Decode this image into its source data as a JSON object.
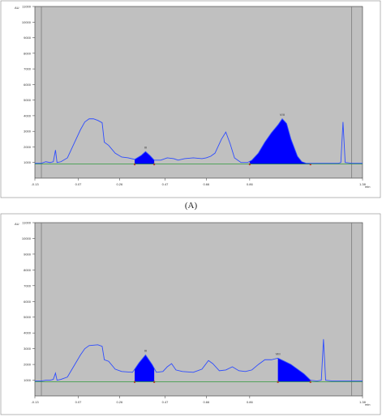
{
  "panel_labels": [
    "(A)"
  ],
  "colors": {
    "plot_bg": "#c0c0c0",
    "trace": "#2d4cff",
    "fill": "#0000ff",
    "baseline": "#2e9a3a",
    "marker": "#d42020",
    "vline": "#7a7a7a",
    "frame": "#333333"
  },
  "chart_data": [
    {
      "type": "area",
      "y_unit": "AU",
      "x_unit": "min",
      "ylim": [
        0,
        11000
      ],
      "xlim": [
        -0.13,
        1.38
      ],
      "y_ticks": [
        1000,
        2000,
        3000,
        4000,
        5000,
        6000,
        7000,
        8000,
        9000,
        10000,
        11000
      ],
      "x_ticks": [
        {
          "v": -0.13,
          "label": "-0.13"
        },
        {
          "v": 0.07,
          "label": "0.07"
        },
        {
          "v": 0.26,
          "label": "0.26"
        },
        {
          "v": 0.47,
          "label": "0.47"
        },
        {
          "v": 0.66,
          "label": "0.66"
        },
        {
          "v": 0.86,
          "label": "0.86"
        },
        {
          "v": 1.38,
          "label": "1.38"
        }
      ],
      "baseline_y": 900,
      "vlines": [
        -0.1,
        1.33
      ],
      "trace": [
        [
          -0.13,
          950
        ],
        [
          -0.1,
          950
        ],
        [
          -0.08,
          1050
        ],
        [
          -0.06,
          1000
        ],
        [
          -0.045,
          1050
        ],
        [
          -0.035,
          1800
        ],
        [
          -0.028,
          1000
        ],
        [
          -0.01,
          1050
        ],
        [
          0.02,
          1300
        ],
        [
          0.05,
          2200
        ],
        [
          0.08,
          3100
        ],
        [
          0.1,
          3600
        ],
        [
          0.12,
          3800
        ],
        [
          0.14,
          3800
        ],
        [
          0.16,
          3700
        ],
        [
          0.18,
          3550
        ],
        [
          0.19,
          2300
        ],
        [
          0.21,
          2100
        ],
        [
          0.24,
          1600
        ],
        [
          0.27,
          1350
        ],
        [
          0.3,
          1300
        ],
        [
          0.33,
          1200
        ],
        [
          0.36,
          1450
        ],
        [
          0.38,
          1700
        ],
        [
          0.4,
          1450
        ],
        [
          0.42,
          1150
        ],
        [
          0.45,
          1150
        ],
        [
          0.48,
          1300
        ],
        [
          0.51,
          1250
        ],
        [
          0.53,
          1150
        ],
        [
          0.56,
          1250
        ],
        [
          0.6,
          1300
        ],
        [
          0.64,
          1250
        ],
        [
          0.66,
          1300
        ],
        [
          0.68,
          1400
        ],
        [
          0.7,
          1600
        ],
        [
          0.73,
          2500
        ],
        [
          0.75,
          2950
        ],
        [
          0.77,
          2200
        ],
        [
          0.79,
          1300
        ],
        [
          0.82,
          1000
        ],
        [
          0.85,
          1000
        ],
        [
          0.87,
          1150
        ],
        [
          0.9,
          1600
        ],
        [
          0.93,
          2300
        ],
        [
          0.96,
          2900
        ],
        [
          0.99,
          3400
        ],
        [
          1.01,
          3800
        ],
        [
          1.03,
          3500
        ],
        [
          1.05,
          2500
        ],
        [
          1.08,
          1400
        ],
        [
          1.1,
          1050
        ],
        [
          1.12,
          950
        ],
        [
          1.15,
          950
        ],
        [
          1.18,
          950
        ],
        [
          1.21,
          950
        ],
        [
          1.24,
          950
        ],
        [
          1.27,
          950
        ],
        [
          1.28,
          1000
        ],
        [
          1.29,
          3600
        ],
        [
          1.3,
          1000
        ],
        [
          1.33,
          950
        ],
        [
          1.38,
          950
        ]
      ],
      "peaks": [
        {
          "label": "III",
          "x0": 0.33,
          "x1": 0.42
        },
        {
          "label": "VIII",
          "x0": 0.86,
          "x1": 1.14
        }
      ]
    },
    {
      "type": "area",
      "y_unit": "AU",
      "x_unit": "min",
      "ylim": [
        0,
        11000
      ],
      "xlim": [
        -0.13,
        1.38
      ],
      "y_ticks": [
        1000,
        2000,
        3000,
        4000,
        5000,
        6000,
        7000,
        8000,
        9000,
        10000,
        11000
      ],
      "x_ticks": [
        {
          "v": -0.13,
          "label": "-0.13"
        },
        {
          "v": 0.07,
          "label": "0.07"
        },
        {
          "v": 0.26,
          "label": "0.26"
        },
        {
          "v": 0.47,
          "label": "0.47"
        },
        {
          "v": 0.66,
          "label": "0.66"
        },
        {
          "v": 0.86,
          "label": "0.86"
        },
        {
          "v": 1.38,
          "label": "1.38"
        }
      ],
      "baseline_y": 900,
      "vlines": [
        -0.1,
        1.33
      ],
      "trace": [
        [
          -0.13,
          950
        ],
        [
          -0.1,
          950
        ],
        [
          -0.08,
          1000
        ],
        [
          -0.06,
          1000
        ],
        [
          -0.045,
          1050
        ],
        [
          -0.035,
          1450
        ],
        [
          -0.028,
          1000
        ],
        [
          -0.01,
          1050
        ],
        [
          0.02,
          1200
        ],
        [
          0.05,
          1900
        ],
        [
          0.08,
          2600
        ],
        [
          0.1,
          3000
        ],
        [
          0.12,
          3200
        ],
        [
          0.16,
          3250
        ],
        [
          0.18,
          3150
        ],
        [
          0.19,
          2300
        ],
        [
          0.21,
          2200
        ],
        [
          0.24,
          1700
        ],
        [
          0.27,
          1550
        ],
        [
          0.32,
          1500
        ],
        [
          0.35,
          2100
        ],
        [
          0.38,
          2600
        ],
        [
          0.41,
          2000
        ],
        [
          0.43,
          1500
        ],
        [
          0.46,
          1550
        ],
        [
          0.48,
          1850
        ],
        [
          0.5,
          2050
        ],
        [
          0.52,
          1650
        ],
        [
          0.55,
          1550
        ],
        [
          0.6,
          1500
        ],
        [
          0.64,
          1700
        ],
        [
          0.67,
          2250
        ],
        [
          0.69,
          2050
        ],
        [
          0.72,
          1600
        ],
        [
          0.75,
          1650
        ],
        [
          0.78,
          1850
        ],
        [
          0.81,
          1600
        ],
        [
          0.84,
          1550
        ],
        [
          0.87,
          1650
        ],
        [
          0.9,
          2000
        ],
        [
          0.93,
          2300
        ],
        [
          0.96,
          2300
        ],
        [
          0.99,
          2400
        ],
        [
          1.02,
          2200
        ],
        [
          1.05,
          2000
        ],
        [
          1.08,
          1700
        ],
        [
          1.11,
          1400
        ],
        [
          1.14,
          1000
        ],
        [
          1.17,
          950
        ],
        [
          1.19,
          1000
        ],
        [
          1.2,
          3600
        ],
        [
          1.21,
          1000
        ],
        [
          1.24,
          950
        ],
        [
          1.29,
          950
        ],
        [
          1.33,
          950
        ],
        [
          1.38,
          950
        ]
      ],
      "peaks": [
        {
          "label": "III",
          "x0": 0.33,
          "x1": 0.42
        },
        {
          "label": "VIII",
          "x0": 0.99,
          "x1": 1.14
        }
      ]
    }
  ]
}
